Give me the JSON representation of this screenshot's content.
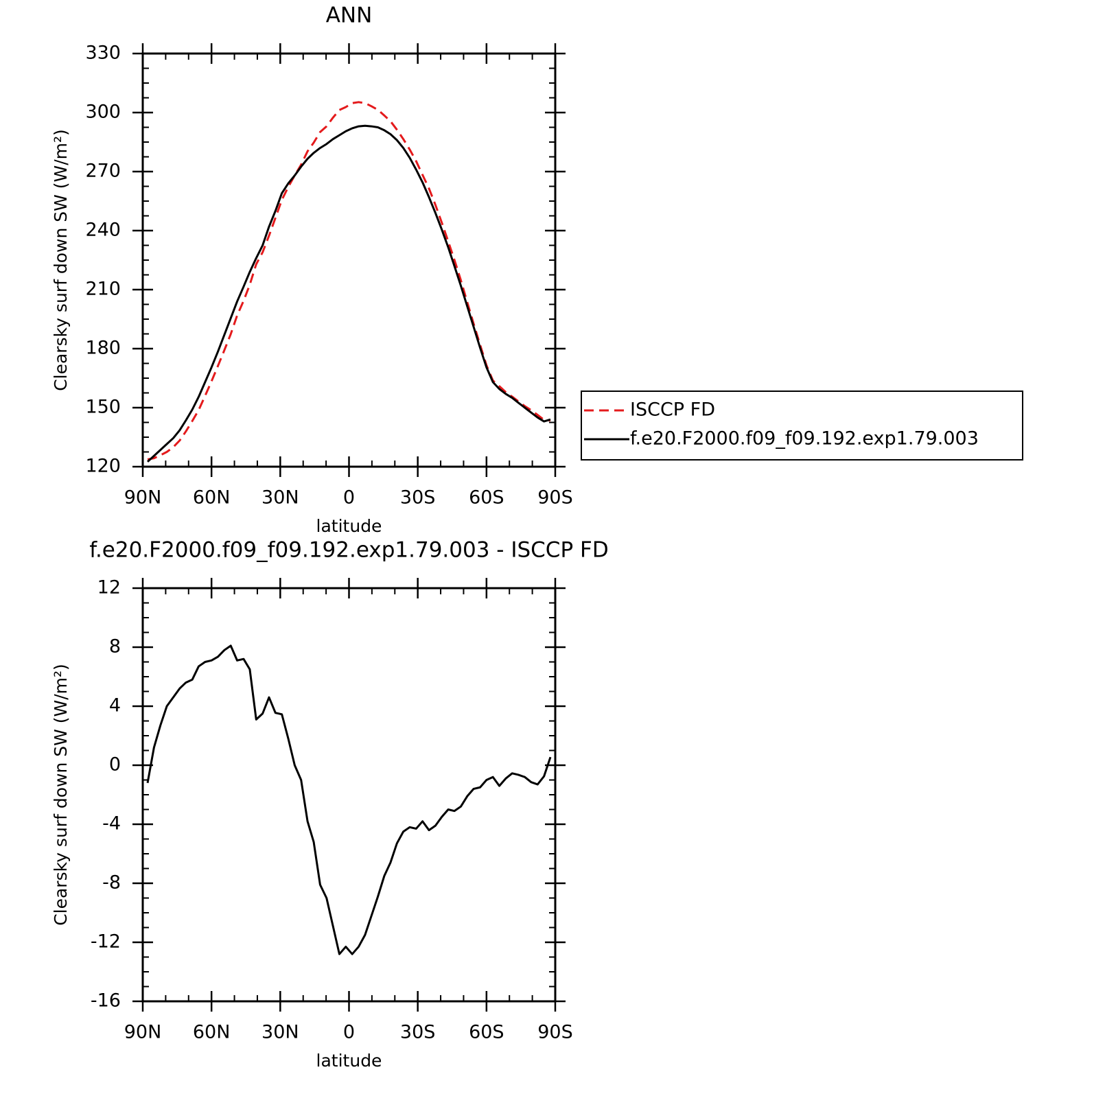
{
  "chart_data": [
    {
      "type": "line",
      "title": "ANN",
      "xlabel": "latitude",
      "ylabel": "Clearsky surf down SW (W/m²)",
      "x": [
        87.9,
        85.1,
        82.3,
        79.5,
        76.7,
        73.9,
        71.2,
        68.4,
        65.6,
        62.8,
        60.0,
        57.2,
        54.4,
        51.6,
        48.8,
        46.0,
        43.3,
        40.5,
        37.7,
        34.9,
        32.1,
        29.3,
        26.5,
        23.7,
        20.9,
        18.1,
        15.4,
        12.6,
        9.8,
        7.0,
        4.2,
        1.4,
        -1.4,
        -4.2,
        -7.0,
        -9.8,
        -12.6,
        -15.4,
        -18.1,
        -20.9,
        -23.7,
        -26.5,
        -29.3,
        -32.1,
        -34.9,
        -37.7,
        -40.5,
        -43.3,
        -46.0,
        -48.8,
        -51.6,
        -54.4,
        -57.2,
        -60.0,
        -62.8,
        -65.6,
        -68.4,
        -71.2,
        -73.9,
        -76.7,
        -79.5,
        -82.3,
        -85.1,
        -87.9
      ],
      "series": [
        {
          "name": "ISCCP FD",
          "color": "#e41a1c",
          "line_style": "dashed",
          "values": [
            123.7,
            124.3,
            125.8,
            127.5,
            129.9,
            133.3,
            137.9,
            143.2,
            148.8,
            156.0,
            163.4,
            171.2,
            179.2,
            187.4,
            196.9,
            204.3,
            212.5,
            222.9,
            229.0,
            237.4,
            246.5,
            255.6,
            262.2,
            268.0,
            273.5,
            280.3,
            284.7,
            290.1,
            293.0,
            297.4,
            301.3,
            302.8,
            304.8,
            305.3,
            304.8,
            303.2,
            301.4,
            298.5,
            295.6,
            291.3,
            286.5,
            281.2,
            275.3,
            268.3,
            261.4,
            253.1,
            244.0,
            234.5,
            225.1,
            214.8,
            203.6,
            192.6,
            182.0,
            171.5,
            163.8,
            160.9,
            157.9,
            155.6,
            153.2,
            150.8,
            148.7,
            146.3,
            143.8,
            143.5
          ]
        },
        {
          "name": "f.e20.F2000.f09_f09.192.exp1.79.003",
          "color": "#000000",
          "line_style": "solid",
          "values": [
            122.5,
            125.5,
            128.5,
            131.5,
            134.5,
            138.5,
            143.5,
            149,
            155.5,
            163,
            170.5,
            178.5,
            187,
            195.5,
            204,
            211.5,
            219,
            226,
            232.5,
            242,
            250,
            259,
            264,
            268,
            272.5,
            276.5,
            279.5,
            282,
            284,
            286.5,
            288.5,
            290.5,
            292,
            293,
            293.3,
            293,
            292.5,
            291,
            289,
            286,
            282,
            277,
            271,
            264.5,
            257,
            249,
            240.5,
            231.5,
            222,
            212,
            201.5,
            191,
            180.5,
            170.5,
            163,
            159.5,
            157,
            155,
            152.5,
            150,
            147.5,
            145,
            143,
            144
          ]
        }
      ],
      "xlim": [
        90,
        -90
      ],
      "xticks": [
        {
          "value": 90,
          "label": "90N"
        },
        {
          "value": 60,
          "label": "60N"
        },
        {
          "value": 30,
          "label": "30N"
        },
        0,
        {
          "value": -30,
          "label": "30S"
        },
        {
          "value": -60,
          "label": "60S"
        },
        {
          "value": -90,
          "label": "90S"
        }
      ],
      "xminorticks": [
        80,
        70,
        50,
        40,
        20,
        10,
        -10,
        -20,
        -40,
        -50,
        -70,
        -80
      ],
      "ylim": [
        120,
        330
      ],
      "yticks": [
        120,
        150,
        180,
        210,
        240,
        270,
        300,
        330
      ],
      "yminorticks": [
        127.5,
        135,
        142.5,
        157.5,
        165,
        172.5,
        187.5,
        195,
        202.5,
        217.5,
        225,
        232.5,
        247.5,
        255,
        262.5,
        277.5,
        285,
        292.5,
        307.5,
        315,
        322.5
      ],
      "legend": "right"
    },
    {
      "type": "line",
      "title": "f.e20.F2000.f09_f09.192.exp1.79.003 - ISCCP FD",
      "xlabel": "latitude",
      "ylabel": "Clearsky surf down SW (W/m²)",
      "x": [
        87.9,
        85.1,
        82.3,
        79.5,
        76.7,
        73.9,
        71.2,
        68.4,
        65.6,
        62.8,
        60.0,
        57.2,
        54.4,
        51.6,
        48.8,
        46.0,
        43.3,
        40.5,
        37.7,
        34.9,
        32.1,
        29.3,
        26.5,
        23.7,
        20.9,
        18.1,
        15.4,
        12.6,
        9.8,
        7.0,
        4.2,
        1.4,
        -1.4,
        -4.2,
        -7.0,
        -9.8,
        -12.6,
        -15.4,
        -18.1,
        -20.9,
        -23.7,
        -26.5,
        -29.3,
        -32.1,
        -34.9,
        -37.7,
        -40.5,
        -43.3,
        -46.0,
        -48.8,
        -51.6,
        -54.4,
        -57.2,
        -60.0,
        -62.8,
        -65.6,
        -68.4,
        -71.2,
        -73.9,
        -76.7,
        -79.5,
        -82.3,
        -85.1,
        -87.9
      ],
      "values": [
        -1.2,
        1.2,
        2.7,
        4.0,
        4.6,
        5.2,
        5.6,
        5.8,
        6.7,
        7.0,
        7.1,
        7.35,
        7.8,
        8.1,
        7.1,
        7.2,
        6.5,
        3.1,
        3.5,
        4.6,
        3.55,
        3.45,
        1.8,
        0.0,
        -1.0,
        -3.8,
        -5.2,
        -8.1,
        -9.0,
        -10.9,
        -12.8,
        -12.3,
        -12.8,
        -12.3,
        -11.5,
        -10.2,
        -8.9,
        -7.5,
        -6.6,
        -5.3,
        -4.5,
        -4.2,
        -4.3,
        -3.8,
        -4.4,
        -4.1,
        -3.5,
        -3.0,
        -3.1,
        -2.8,
        -2.1,
        -1.6,
        -1.5,
        -1.0,
        -0.8,
        -1.4,
        -0.9,
        -0.55,
        -0.65,
        -0.8,
        -1.15,
        -1.3,
        -0.75,
        0.55
      ],
      "color": "#000000",
      "xlim": [
        90,
        -90
      ],
      "xticks": [
        {
          "value": 90,
          "label": "90N"
        },
        {
          "value": 60,
          "label": "60N"
        },
        {
          "value": 30,
          "label": "30N"
        },
        0,
        {
          "value": -30,
          "label": "30S"
        },
        {
          "value": -60,
          "label": "60S"
        },
        {
          "value": -90,
          "label": "90S"
        }
      ],
      "xminorticks": [
        80,
        70,
        50,
        40,
        20,
        10,
        -10,
        -20,
        -40,
        -50,
        -70,
        -80
      ],
      "ylim": [
        -16,
        12
      ],
      "yticks": [
        -16,
        -12,
        -8,
        -4,
        0,
        4,
        8,
        12
      ],
      "yminorticks": [
        -15,
        -14,
        -13,
        -11,
        -10,
        -9,
        -7,
        -6,
        -5,
        -3,
        -2,
        -1,
        1,
        2,
        3,
        5,
        6,
        7,
        9,
        10,
        11
      ]
    }
  ]
}
